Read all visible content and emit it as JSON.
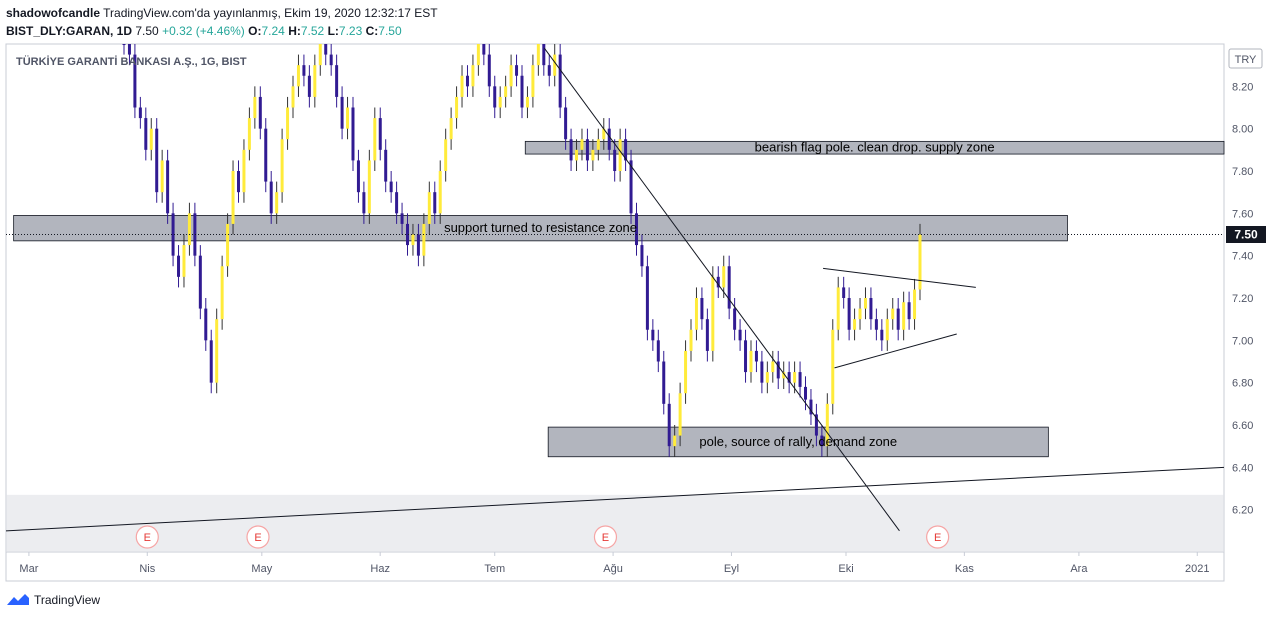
{
  "header": {
    "author": "shadowofcandle",
    "published": "TradingView.com'da yayınlanmış, Ekim 19, 2020 12:32:17 EST",
    "symbol": "BIST_DLY:GARAN, 1D",
    "last": "7.50",
    "change": "+0.32 (+4.46%)",
    "o_label": "O:",
    "o": "7.24",
    "h_label": "H:",
    "h": "7.52",
    "l_label": "L:",
    "l": "7.23",
    "c_label": "C:",
    "c": "7.50"
  },
  "footer": {
    "brand": "TradingView",
    "icon": "tradingview-logo-icon"
  },
  "colors": {
    "up": "#ffeb3b",
    "down": "#311b92",
    "zone": "#b2b5be",
    "lastPrice": "#131722"
  },
  "chart_data": {
    "type": "candlestick",
    "title": "TÜRKİYE GARANTİ BANKASI A.Ş., 1G, BIST",
    "currency": "TRY",
    "last_price": 7.5,
    "last_price_label": "7.50",
    "ylim": [
      6.0,
      8.4
    ],
    "y_ticks": [
      6.2,
      6.4,
      6.6,
      6.8,
      7.0,
      7.2,
      7.4,
      7.6,
      7.8,
      8.0,
      8.2
    ],
    "y_tick_labels": [
      "6.20",
      "6.40",
      "6.60",
      "6.80",
      "7.00",
      "7.20",
      "7.40",
      "7.60",
      "7.80",
      "8.00",
      "8.20"
    ],
    "x_range": [
      "2020-02-24",
      "2021-01-08"
    ],
    "x_ticks": [
      {
        "date": "2020-03-01",
        "label": "Mar"
      },
      {
        "date": "2020-04-01",
        "label": "Nis"
      },
      {
        "date": "2020-05-01",
        "label": "May"
      },
      {
        "date": "2020-06-01",
        "label": "Haz"
      },
      {
        "date": "2020-07-01",
        "label": "Tem"
      },
      {
        "date": "2020-08-01",
        "label": "Ağu"
      },
      {
        "date": "2020-09-01",
        "label": "Eyl"
      },
      {
        "date": "2020-10-01",
        "label": "Eki"
      },
      {
        "date": "2020-11-01",
        "label": "Kas"
      },
      {
        "date": "2020-12-01",
        "label": "Ara"
      },
      {
        "date": "2021-01-01",
        "label": "2021"
      }
    ],
    "earnings_markers": [
      {
        "date": "2020-04-01",
        "label": "E"
      },
      {
        "date": "2020-04-30",
        "label": "E"
      },
      {
        "date": "2020-07-30",
        "label": "E"
      },
      {
        "date": "2020-10-25",
        "label": "E"
      }
    ],
    "candles_close": [
      8.4,
      8.35,
      8.1,
      8.05,
      7.9,
      8.0,
      7.7,
      7.85,
      7.6,
      7.4,
      7.3,
      7.45,
      7.6,
      7.4,
      7.15,
      7.0,
      6.8,
      7.1,
      7.35,
      7.55,
      7.8,
      7.7,
      7.9,
      8.05,
      8.15,
      8.0,
      7.75,
      7.6,
      7.7,
      7.95,
      8.1,
      8.2,
      8.3,
      8.25,
      8.15,
      8.3,
      8.4,
      8.35,
      8.3,
      8.15,
      8.0,
      8.1,
      7.85,
      7.7,
      7.6,
      7.85,
      8.05,
      7.9,
      7.75,
      7.7,
      7.6,
      7.55,
      7.45,
      7.5,
      7.4,
      7.55,
      7.7,
      7.6,
      7.8,
      7.95,
      8.05,
      8.15,
      8.25,
      8.2,
      8.3,
      8.4,
      8.35,
      8.2,
      8.1,
      8.15,
      8.2,
      8.3,
      8.25,
      8.1,
      8.15,
      8.3,
      8.4,
      8.3,
      8.25,
      8.35,
      8.1,
      7.95,
      7.85,
      7.9,
      7.95,
      7.85,
      7.9,
      7.95,
      8.0,
      7.9,
      7.8,
      7.95,
      7.85,
      7.6,
      7.45,
      7.35,
      7.05,
      7.0,
      6.9,
      6.7,
      6.5,
      6.55,
      6.75,
      6.95,
      7.05,
      7.2,
      7.1,
      6.95,
      7.3,
      7.25,
      7.35,
      7.15,
      7.05,
      7.0,
      6.85,
      6.95,
      6.9,
      6.8,
      6.85,
      6.9,
      6.82,
      6.85,
      6.8,
      6.85,
      6.78,
      6.72,
      6.65,
      6.55,
      6.5,
      6.7,
      7.05,
      7.25,
      7.2,
      7.05,
      7.1,
      7.15,
      7.2,
      7.1,
      7.05,
      7.0,
      7.1,
      7.15,
      7.05,
      7.18,
      7.1,
      7.24,
      7.5
    ],
    "zones": [
      {
        "label": "bearish flag pole. clean drop. supply zone",
        "from": "2020-07-09",
        "to": "2021-01-08",
        "price_low": 7.88,
        "price_high": 7.94
      },
      {
        "label": "support turned to resistance zone",
        "from": "2020-02-26",
        "to": "2020-11-28",
        "price_low": 7.47,
        "price_high": 7.59
      },
      {
        "label": "pole, source of rally, demand zone",
        "from": "2020-07-15",
        "to": "2020-11-23",
        "price_low": 6.45,
        "price_high": 6.59
      },
      {
        "label": "",
        "from": "2020-02-24",
        "to": "2021-01-08",
        "price_low": 6.0,
        "price_high": 6.27
      }
    ],
    "trendlines": [
      {
        "from": [
          "2020-07-14",
          8.38
        ],
        "to": [
          "2020-10-15",
          6.1
        ]
      },
      {
        "from": [
          "2020-02-24",
          6.1
        ],
        "to": [
          "2021-01-08",
          6.4
        ]
      },
      {
        "from": [
          "2020-09-25",
          7.34
        ],
        "to": [
          "2020-11-04",
          7.25
        ]
      },
      {
        "from": [
          "2020-09-28",
          6.87
        ],
        "to": [
          "2020-10-30",
          7.03
        ]
      }
    ]
  }
}
